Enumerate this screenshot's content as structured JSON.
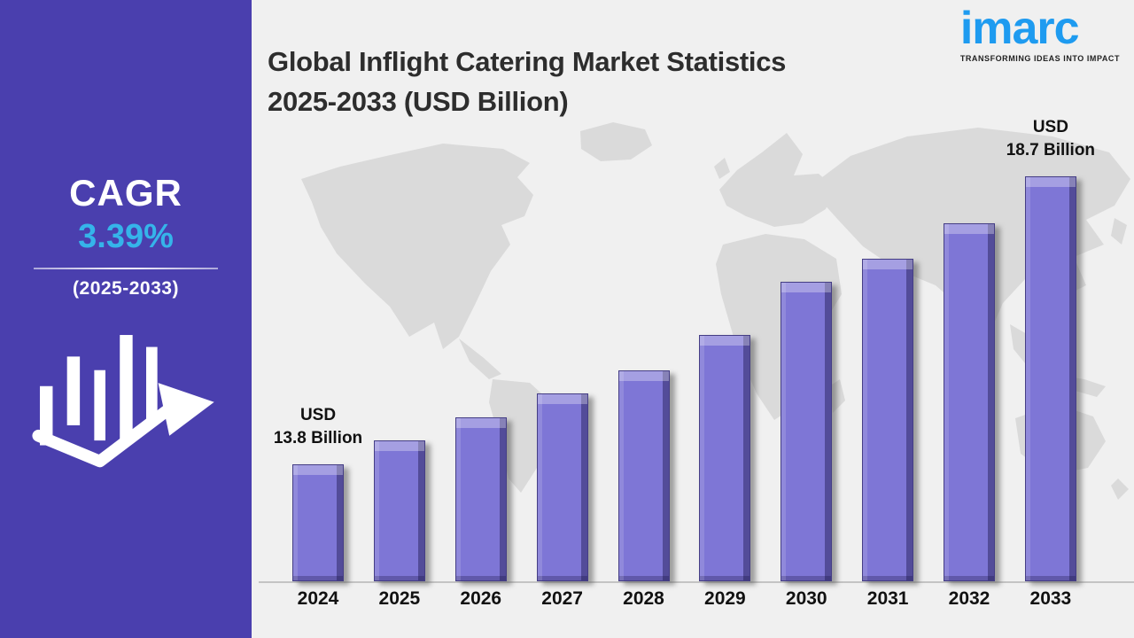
{
  "sidebar": {
    "cagr_label": "CAGR",
    "cagr_value": "3.39%",
    "period": "(2025-2033)",
    "accent_color": "#35b4ea",
    "background_color": "#4a3fae",
    "icon": "bar-chart-growth-arrow-icon"
  },
  "header": {
    "title_line1": "Global Inflight Catering Market Statistics",
    "title_line2": "2025-2033 (USD Billion)"
  },
  "logo": {
    "name": "imarc",
    "tagline": "TRANSFORMING IDEAS INTO IMPACT",
    "color": "#1e9bf0"
  },
  "chart_data": {
    "type": "bar",
    "title": "Global Inflight Catering Market Statistics 2025-2033 (USD Billion)",
    "unit": "USD Billion",
    "categories": [
      "2024",
      "2025",
      "2026",
      "2027",
      "2028",
      "2029",
      "2030",
      "2031",
      "2032",
      "2033"
    ],
    "values": [
      13.8,
      14.2,
      14.6,
      15.0,
      15.4,
      16.0,
      16.9,
      17.3,
      17.9,
      18.7
    ],
    "ylim": [
      11.8,
      18.7
    ],
    "xlabel": "",
    "ylabel": "",
    "grid": false,
    "legend": false,
    "bar_color": "#7e76d6",
    "background_color": "#f0f0f0",
    "map_color": "#dadada",
    "annotations": [
      {
        "category": "2024",
        "line1": "USD",
        "line2": "13.8 Billion"
      },
      {
        "category": "2033",
        "line1": "USD",
        "line2": "18.7 Billion"
      }
    ]
  }
}
